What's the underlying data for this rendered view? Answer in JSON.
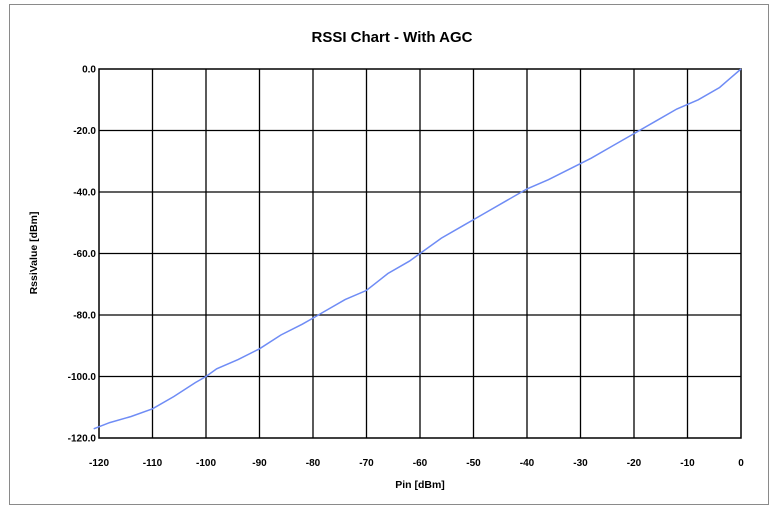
{
  "chart_data": {
    "type": "line",
    "title": "RSSI Chart - With AGC",
    "xlabel": "Pin [dBm]",
    "ylabel": "RssiValue [dBm]",
    "xlim": [
      -120,
      0
    ],
    "ylim": [
      -120,
      0
    ],
    "grid": true,
    "x_tick_labels": [
      "-120",
      "-110",
      "-100",
      "-90",
      "-80",
      "-70",
      "-60",
      "-50",
      "-40",
      "-30",
      "-20",
      "-10",
      "0"
    ],
    "y_tick_labels": [
      "0.0",
      "-20.0",
      "-40.0",
      "-60.0",
      "-80.0",
      "-100.0",
      "-120.0"
    ],
    "line_color": "#6f8cf5",
    "series": [
      {
        "x": [
          -121,
          -118,
          -114,
          -110,
          -106,
          -102,
          -100,
          -98,
          -94,
          -90,
          -86,
          -82,
          -80,
          -78,
          -74,
          -70,
          -66,
          -62,
          -60,
          -56,
          -52,
          -48,
          -44,
          -40,
          -36,
          -32,
          -28,
          -24,
          -20,
          -16,
          -12,
          -8,
          -4,
          -2,
          0
        ],
        "y": [
          -117,
          -115,
          -113,
          -110.5,
          -106.5,
          -102,
          -100,
          -97.5,
          -94.5,
          -91,
          -86.5,
          -83,
          -81,
          -79,
          -75,
          -72,
          -66.5,
          -62.5,
          -60,
          -55,
          -51,
          -47,
          -43,
          -39,
          -36,
          -32.5,
          -29,
          -25,
          -21,
          -17,
          -13,
          -10,
          -6,
          -3,
          0
        ]
      }
    ]
  }
}
